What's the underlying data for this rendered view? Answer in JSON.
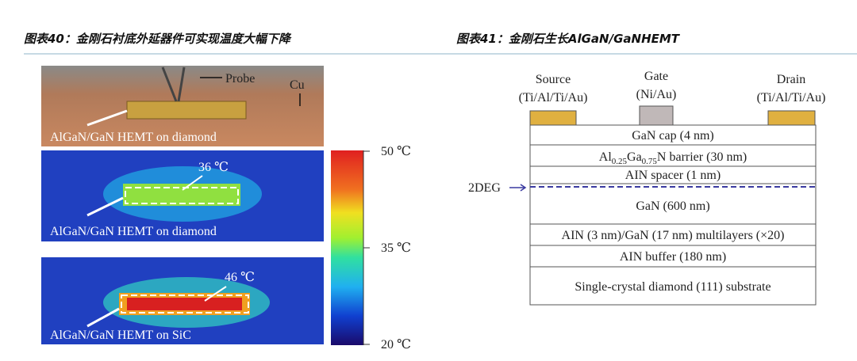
{
  "figures": [
    {
      "title": "图表40：金刚石衬底外延器件可实现温度大幅下降",
      "labels": {
        "probe": "Probe",
        "cu": "Cu",
        "photo": "AlGaN/GaN HEMT on diamond",
        "temp1": "36 ℃",
        "thermal1": "AlGaN/GaN HEMT on diamond",
        "temp2": "46 ℃",
        "thermal2": "AlGaN/GaN HEMT on SiC"
      },
      "colorbar": [
        "50 ℃",
        "35 ℃",
        "20 ℃"
      ]
    },
    {
      "title": "图表41：金刚石生长AlGaN/GaNHEMT",
      "electrodes": [
        {
          "name": "Source",
          "metal": "(Ti/Al/Ti/Au)"
        },
        {
          "name": "Gate",
          "metal": "(Ni/Au)"
        },
        {
          "name": "Drain",
          "metal": "(Ti/Al/Ti/Au)"
        }
      ],
      "barrier": [
        "Al",
        "0.25",
        "Ga",
        "0.75",
        "N barrier (30 nm)"
      ],
      "layers": [
        "GaN cap (4 nm)",
        "AIN spacer (1 nm)",
        "GaN (600 nm)",
        "AIN (3 nm)/GaN (17 nm) multilayers (×20)",
        "AIN buffer (180 nm)",
        "Single-crystal diamond (111) substrate"
      ],
      "channel": "2DEG"
    }
  ]
}
